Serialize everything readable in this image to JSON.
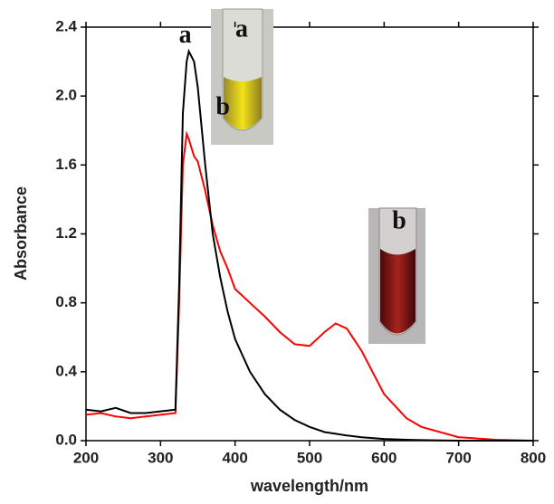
{
  "chart_data": {
    "type": "line",
    "x_label": "wavelength/nm",
    "y_label": "Absorbance",
    "x": [
      200,
      220,
      240,
      260,
      280,
      300,
      320,
      325,
      330,
      335,
      338,
      345,
      350,
      360,
      370,
      380,
      390,
      400,
      420,
      440,
      460,
      480,
      500,
      520,
      535,
      550,
      570,
      600,
      630,
      650,
      700,
      750,
      800
    ],
    "series": [
      {
        "name": "a",
        "color": "#000000",
        "values": [
          0.18,
          0.17,
          0.19,
          0.16,
          0.16,
          0.17,
          0.18,
          0.9,
          1.9,
          2.2,
          2.26,
          2.2,
          2.05,
          1.6,
          1.2,
          0.95,
          0.75,
          0.59,
          0.4,
          0.27,
          0.18,
          0.12,
          0.08,
          0.05,
          0.04,
          0.03,
          0.02,
          0.01,
          0.005,
          0.003,
          0,
          0,
          0
        ]
      },
      {
        "name": "b",
        "color": "#ff0000",
        "values": [
          0.15,
          0.16,
          0.14,
          0.13,
          0.14,
          0.15,
          0.16,
          0.8,
          1.6,
          1.78,
          1.75,
          1.65,
          1.62,
          1.45,
          1.25,
          1.1,
          1.0,
          0.88,
          0.8,
          0.72,
          0.63,
          0.56,
          0.55,
          0.63,
          0.68,
          0.65,
          0.52,
          0.27,
          0.13,
          0.08,
          0.02,
          0.005,
          0
        ]
      }
    ],
    "inset_labels": [
      "a",
      "b"
    ],
    "xlim": [
      200,
      800
    ],
    "xticks": [
      200,
      300,
      400,
      500,
      600,
      700,
      800
    ],
    "ylim": [
      0,
      2.4
    ],
    "yticks": [
      {
        "value": 0,
        "label": "0.0"
      },
      0.4,
      0.8,
      1.2,
      1.6,
      {
        "value": 2,
        "label": "2.0"
      },
      2.4
    ]
  }
}
